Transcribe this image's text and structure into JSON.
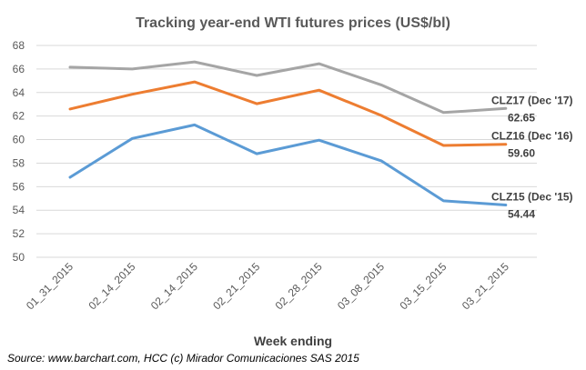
{
  "chart_data": {
    "type": "line",
    "title": "Tracking year-end WTI futures prices (US$/bl)",
    "xlabel": "Week ending",
    "ylabel": "",
    "source": "Source: www.barchart.com, HCC (c) Mirador Comunicaciones SAS 2015",
    "categories": [
      "01_31_2015",
      "02_14_2015",
      "02_14_2015",
      "02_21_2015",
      "02_28_2015",
      "03_08_2015",
      "03_15_2015",
      "03_21_2015"
    ],
    "ylim": [
      50,
      68
    ],
    "yticks": [
      "50",
      "52",
      "54",
      "56",
      "58",
      "60",
      "62",
      "64",
      "66",
      "68"
    ],
    "grid": true,
    "legend": "end-of-line labels",
    "series": [
      {
        "name": "CLZ17 (Dec '17)",
        "end_label": "62.65",
        "color": "#a5a5a5",
        "values": [
          66.15,
          66.0,
          66.6,
          65.45,
          66.45,
          64.65,
          62.3,
          62.65
        ]
      },
      {
        "name": "CLZ16 (Dec '16)",
        "end_label": "59.60",
        "color": "#ed7d31",
        "values": [
          62.6,
          63.85,
          64.9,
          63.05,
          64.2,
          62.05,
          59.5,
          59.6
        ]
      },
      {
        "name": "CLZ15 (Dec '15)",
        "end_label": "54.44",
        "color": "#5b9bd5",
        "values": [
          56.8,
          60.1,
          61.25,
          58.8,
          59.95,
          58.2,
          54.8,
          54.44
        ]
      }
    ]
  }
}
